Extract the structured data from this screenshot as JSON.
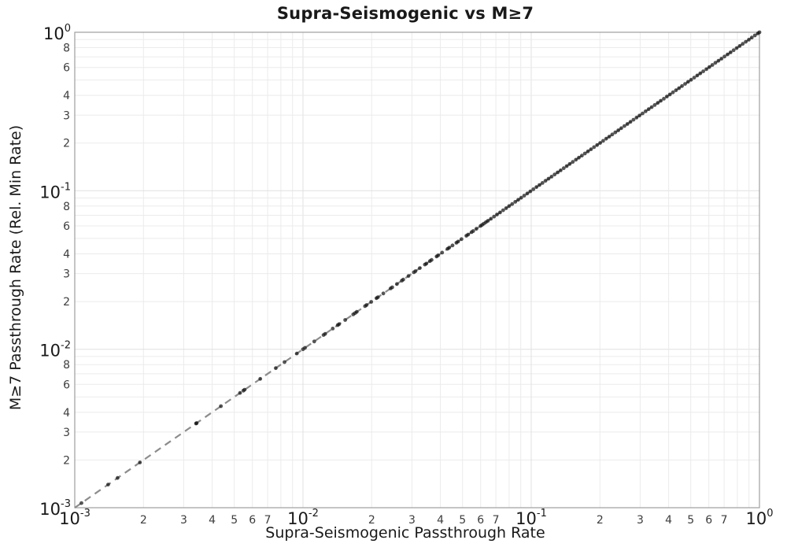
{
  "chart_data": {
    "type": "scatter",
    "title": "Supra-Seismogenic vs M≥7",
    "xlabel": "Supra-Seismogenic Passthrough Rate",
    "ylabel": "M≥7 Passthrough Rate (Rel. Min Rate)",
    "x_scale": "log",
    "y_scale": "log",
    "xlim": [
      0.001,
      1.0
    ],
    "ylim": [
      0.001,
      1.0
    ],
    "grid": true,
    "legend": "none",
    "x_decade_exponents": [
      -3,
      -2,
      -1,
      0
    ],
    "y_decade_exponents": [
      0,
      -1,
      -2,
      -3
    ],
    "x_minor_tick_labels": [
      2,
      3,
      4,
      5,
      6,
      7
    ],
    "y_minor_tick_labels": [
      2,
      3,
      4,
      6,
      8
    ],
    "reference_line": {
      "relation": "y = x",
      "style": "dashed",
      "color": "#8c8c8c",
      "from": 0.001,
      "to": 1.0
    },
    "series": [
      {
        "name": "passthrough-rate-points",
        "marker": "circle",
        "color": "#141414",
        "opacity": 0.72,
        "radius_px": 2.4,
        "y_relation": "y equals x for every point (all points lie on the identity line)",
        "x": [
          0.00107,
          0.0014,
          0.00154,
          0.00193,
          0.0034,
          0.00342,
          0.00437,
          0.0053,
          0.00548,
          0.00555,
          0.0065,
          0.0076,
          0.0083,
          0.0094,
          0.01,
          0.0102,
          0.0112,
          0.0123,
          0.0125,
          0.0135,
          0.0142,
          0.0144,
          0.0153,
          0.0166,
          0.0169,
          0.0172,
          0.0187,
          0.019,
          0.0199,
          0.021,
          0.0213,
          0.0225,
          0.0242,
          0.0246,
          0.0258,
          0.0271,
          0.0275,
          0.029,
          0.0306,
          0.0311,
          0.0325,
          0.0342,
          0.0347,
          0.036,
          0.0366,
          0.0385,
          0.0391,
          0.0407,
          0.043,
          0.0437,
          0.0452,
          0.047,
          0.0478,
          0.0495,
          0.052,
          0.0529,
          0.0548,
          0.0557,
          0.0575,
          0.06,
          0.061,
          0.062,
          0.0633,
          0.0646,
          0.0666,
          0.0687,
          0.0708,
          0.073,
          0.0753,
          0.0776,
          0.08,
          0.0825,
          0.0851,
          0.0877,
          0.0904,
          0.0932,
          0.0961,
          0.0991,
          0.1022,
          0.1054,
          0.1087,
          0.112,
          0.1155,
          0.1191,
          0.1228,
          0.1266,
          0.1306,
          0.1346,
          0.1388,
          0.1431,
          0.1475,
          0.1521,
          0.1569,
          0.1617,
          0.1667,
          0.1719,
          0.1773,
          0.1828,
          0.1885,
          0.1943,
          0.2004,
          0.2066,
          0.213,
          0.2196,
          0.2265,
          0.2335,
          0.2408,
          0.2482,
          0.256,
          0.2639,
          0.2721,
          0.2806,
          0.2893,
          0.2983,
          0.3076,
          0.3171,
          0.327,
          0.3372,
          0.3476,
          0.3584,
          0.3696,
          0.3811,
          0.3929,
          0.4051,
          0.4177,
          0.4307,
          0.4441,
          0.4579,
          0.4722,
          0.4868,
          0.502,
          0.5176,
          0.5337,
          0.5503,
          0.5674,
          0.585,
          0.6032,
          0.622,
          0.6413,
          0.6613,
          0.6818,
          0.703,
          0.7249,
          0.7474,
          0.7707,
          0.7946,
          0.8194,
          0.8448,
          0.8711,
          0.8982,
          0.9261,
          0.9549,
          0.9846,
          1.0
        ]
      }
    ],
    "colors": {
      "background": "#ffffff",
      "grid_major": "#e0e0e0",
      "grid_minor": "#ebebeb",
      "frame": "#9e9e9e",
      "major_tick_label": "#191919",
      "minor_tick_label": "#3d3d3d",
      "title": "#191919"
    }
  }
}
